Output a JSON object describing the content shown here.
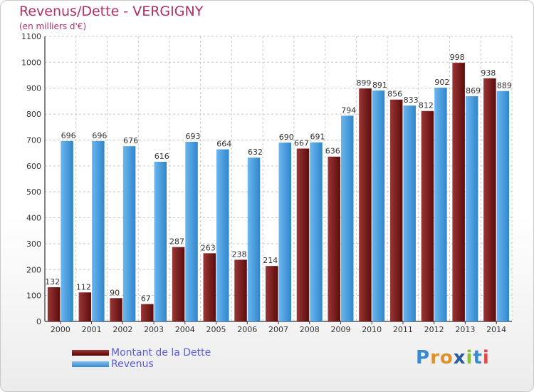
{
  "title": "Revenus/Dette - VERGIGNY",
  "subtitle": "(en milliers d'€)",
  "logo": "Proxiti",
  "colors": {
    "debt": "#7a1c1c",
    "revenus": "#4a9ee0",
    "title": "#b0306a",
    "legend_text": "#5a5ae0"
  },
  "chart_data": {
    "type": "bar",
    "title": "Revenus/Dette - VERGIGNY",
    "ylabel": "(en milliers d'€)",
    "ylim": [
      0,
      1100
    ],
    "yticks": [
      0,
      100,
      200,
      300,
      400,
      500,
      600,
      700,
      800,
      900,
      1000,
      1100
    ],
    "grid": true,
    "legend_position": "bottom-left",
    "categories": [
      "2000",
      "2001",
      "2002",
      "2003",
      "2004",
      "2005",
      "2006",
      "2007",
      "2008",
      "2009",
      "2010",
      "2011",
      "2012",
      "2013",
      "2014"
    ],
    "series": [
      {
        "name": "Montant de la Dette",
        "values": [
          132,
          112,
          90,
          67,
          287,
          263,
          238,
          214,
          667,
          636,
          899,
          856,
          812,
          998,
          938
        ]
      },
      {
        "name": "Revenus",
        "values": [
          696,
          696,
          676,
          616,
          693,
          664,
          632,
          690,
          691,
          794,
          891,
          833,
          902,
          869,
          889
        ]
      }
    ]
  }
}
